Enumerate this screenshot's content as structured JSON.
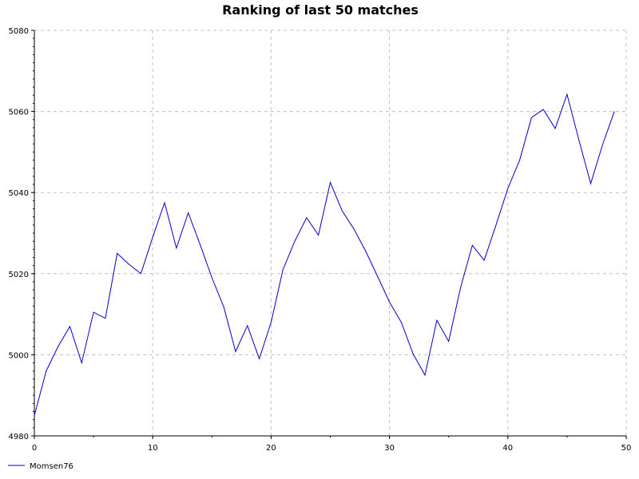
{
  "chart_data": {
    "type": "line",
    "title": "Ranking of last 50 matches",
    "xlabel": "",
    "ylabel": "",
    "xlim": [
      0,
      50
    ],
    "ylim": [
      4980,
      5080
    ],
    "x_ticks": [
      0,
      10,
      20,
      30,
      40,
      50
    ],
    "y_ticks": [
      4980,
      5000,
      5020,
      5040,
      5060,
      5080
    ],
    "grid": true,
    "legend_position": "bottom-left",
    "colors": {
      "series": "#0000cc",
      "grid": "#c0c0c0",
      "axis": "#000000"
    },
    "series": [
      {
        "name": "Momsen76",
        "x": [
          0,
          1,
          2,
          3,
          4,
          5,
          6,
          7,
          8,
          9,
          10,
          11,
          12,
          13,
          14,
          15,
          16,
          17,
          18,
          19,
          20,
          21,
          22,
          23,
          24,
          25,
          26,
          27,
          28,
          29,
          30,
          31,
          32,
          33,
          34,
          35,
          36,
          37,
          38,
          39,
          40,
          41,
          42,
          43,
          44,
          45,
          46,
          47,
          48,
          49
        ],
        "values": [
          4985,
          4996,
          5002,
          5007,
          4998,
          5010.5,
          5009,
          5025,
          5022.3,
          5020,
          5029,
          5037.5,
          5026.3,
          5035,
          5027.2,
          5019,
          5011.8,
          5000.8,
          5007.2,
          4999,
          5008,
          5021,
          5028,
          5033.8,
          5029.5,
          5042.5,
          5035.5,
          5031,
          5025.5,
          5019.3,
          5013,
          5008,
          5000.2,
          4995,
          5008.5,
          5003.3,
          5016.5,
          5027,
          5023.3,
          5032,
          5041,
          5048,
          5058.5,
          5060.5,
          5055.8,
          5064.2,
          5053,
          5042.2,
          5051.8,
          5060
        ]
      }
    ]
  }
}
